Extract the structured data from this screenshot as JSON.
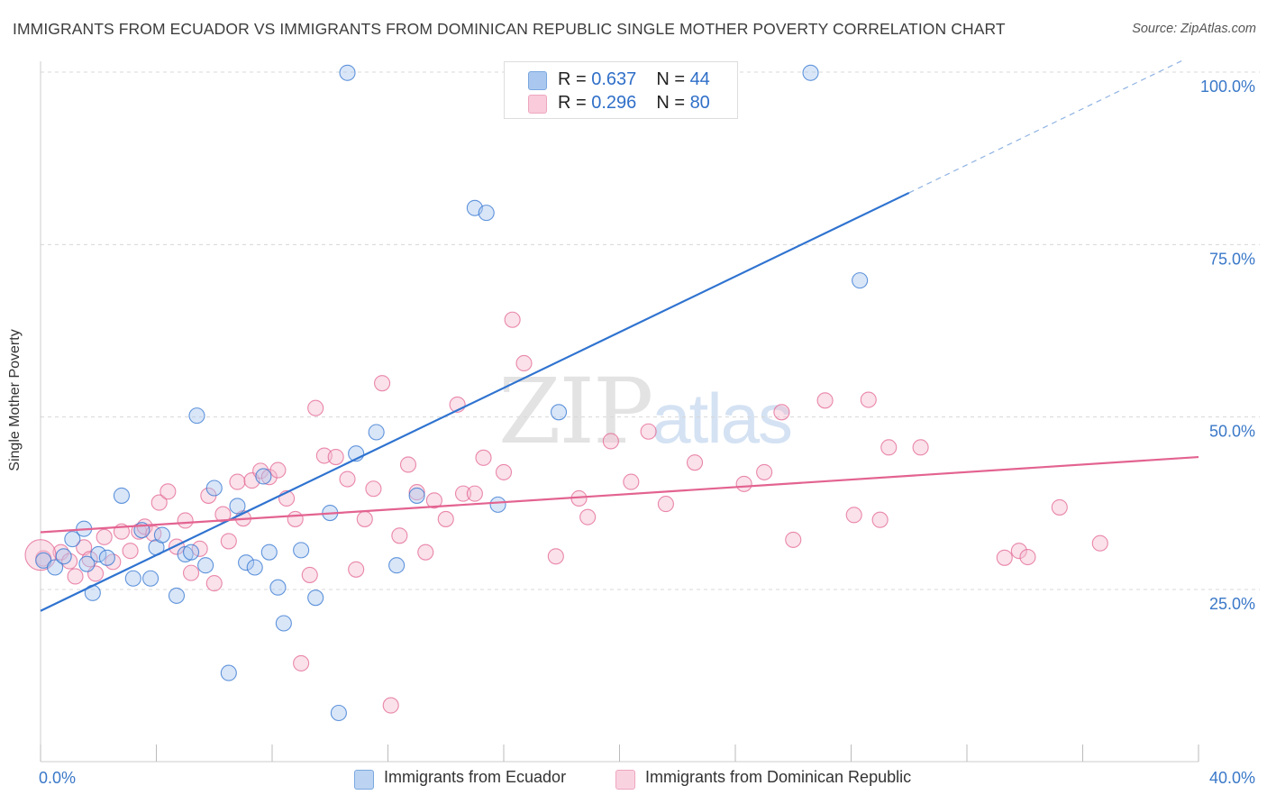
{
  "title": "IMMIGRANTS FROM ECUADOR VS IMMIGRANTS FROM DOMINICAN REPUBLIC SINGLE MOTHER POVERTY CORRELATION CHART",
  "source": "Source: ZipAtlas.com",
  "watermark": {
    "zip": "ZIP",
    "atlas": "atlas"
  },
  "colors": {
    "blue": "#2f73d0",
    "blue_fill": "#aac8ef",
    "pink": "#e36390",
    "pink_fill": "#f5bdd0",
    "grid": "#d8d8d8",
    "tick_label": "#3a78c8"
  },
  "legend_top": [
    {
      "r_label": "R = ",
      "r_value": "0.637",
      "n_label": "N = ",
      "n_value": "44"
    },
    {
      "r_label": "R = ",
      "r_value": "0.296",
      "n_label": "N = ",
      "n_value": "80"
    }
  ],
  "legend_bottom": [
    {
      "label": "Immigrants from Ecuador"
    },
    {
      "label": "Immigrants from Dominican Republic"
    }
  ],
  "chart_data": {
    "type": "scatter",
    "title": "IMMIGRANTS FROM ECUADOR VS IMMIGRANTS FROM DOMINICAN REPUBLIC SINGLE MOTHER POVERTY CORRELATION CHART",
    "xlabel": "",
    "ylabel": "Single Mother Poverty",
    "xlim": [
      0,
      40
    ],
    "ylim": [
      0,
      102
    ],
    "x_tick_labels": [
      "0.0%",
      "40.0%"
    ],
    "y_ticks": [
      25,
      50,
      75,
      100
    ],
    "y_tick_labels": [
      "25.0%",
      "50.0%",
      "75.0%",
      "100.0%"
    ],
    "grid": true,
    "legend_position": "top-center",
    "series": [
      {
        "name": "Immigrants from Ecuador",
        "color": "blue",
        "trend": {
          "x0": 0,
          "y0": 21.9,
          "x1": 30.0,
          "y1": 82.5,
          "dashed_to_x": 39.5,
          "dashed_to_y": 101.8
        },
        "points": [
          [
            0.1,
            29.2
          ],
          [
            0.5,
            28.2
          ],
          [
            0.8,
            29.8
          ],
          [
            1.1,
            32.3
          ],
          [
            1.5,
            33.8
          ],
          [
            1.6,
            28.7
          ],
          [
            1.8,
            24.5
          ],
          [
            2.0,
            30.1
          ],
          [
            2.3,
            29.6
          ],
          [
            2.8,
            38.6
          ],
          [
            3.2,
            26.6
          ],
          [
            3.5,
            33.6
          ],
          [
            3.8,
            26.6
          ],
          [
            4.0,
            31.1
          ],
          [
            4.2,
            32.9
          ],
          [
            4.7,
            24.1
          ],
          [
            5.0,
            30.1
          ],
          [
            5.2,
            30.4
          ],
          [
            5.4,
            50.2
          ],
          [
            5.7,
            28.5
          ],
          [
            6.0,
            39.7
          ],
          [
            6.5,
            12.9
          ],
          [
            6.8,
            37.1
          ],
          [
            7.1,
            28.9
          ],
          [
            7.4,
            28.2
          ],
          [
            7.7,
            41.4
          ],
          [
            7.9,
            30.4
          ],
          [
            8.2,
            25.3
          ],
          [
            8.4,
            20.1
          ],
          [
            9.0,
            30.7
          ],
          [
            9.5,
            23.8
          ],
          [
            10.0,
            36.1
          ],
          [
            10.3,
            7.1
          ],
          [
            10.6,
            99.9
          ],
          [
            10.9,
            44.7
          ],
          [
            11.6,
            47.8
          ],
          [
            12.3,
            28.5
          ],
          [
            13.0,
            38.6
          ],
          [
            15.0,
            80.3
          ],
          [
            15.4,
            79.6
          ],
          [
            15.8,
            37.3
          ],
          [
            17.9,
            50.7
          ],
          [
            26.6,
            99.9
          ],
          [
            28.3,
            69.8
          ]
        ]
      },
      {
        "name": "Immigrants from Dominican Republic",
        "color": "pink",
        "trend": {
          "x0": 0,
          "y0": 33.3,
          "x1": 40.0,
          "y1": 44.2
        },
        "points": [
          [
            0.1,
            29.5
          ],
          [
            0.7,
            30.4
          ],
          [
            1.0,
            29.1
          ],
          [
            1.2,
            26.9
          ],
          [
            1.5,
            31.1
          ],
          [
            1.7,
            29.4
          ],
          [
            1.9,
            27.3
          ],
          [
            2.2,
            32.6
          ],
          [
            2.5,
            29.0
          ],
          [
            2.8,
            33.4
          ],
          [
            3.1,
            30.6
          ],
          [
            3.4,
            33.4
          ],
          [
            3.6,
            34.1
          ],
          [
            3.9,
            33.1
          ],
          [
            4.1,
            37.6
          ],
          [
            4.4,
            39.2
          ],
          [
            4.7,
            31.2
          ],
          [
            5.0,
            35.0
          ],
          [
            5.2,
            27.4
          ],
          [
            5.5,
            30.9
          ],
          [
            5.8,
            38.6
          ],
          [
            6.0,
            25.9
          ],
          [
            6.3,
            35.9
          ],
          [
            6.5,
            32.0
          ],
          [
            6.8,
            40.6
          ],
          [
            7.0,
            35.3
          ],
          [
            7.3,
            40.8
          ],
          [
            7.6,
            42.2
          ],
          [
            7.9,
            41.3
          ],
          [
            8.2,
            42.3
          ],
          [
            8.5,
            38.2
          ],
          [
            8.8,
            35.2
          ],
          [
            9.0,
            14.3
          ],
          [
            9.3,
            27.1
          ],
          [
            9.5,
            51.3
          ],
          [
            9.8,
            44.4
          ],
          [
            10.2,
            44.2
          ],
          [
            10.6,
            41.0
          ],
          [
            10.9,
            27.9
          ],
          [
            11.2,
            35.2
          ],
          [
            11.5,
            39.6
          ],
          [
            11.8,
            54.9
          ],
          [
            12.1,
            8.2
          ],
          [
            12.4,
            32.8
          ],
          [
            12.7,
            43.1
          ],
          [
            13.0,
            39.1
          ],
          [
            13.3,
            30.4
          ],
          [
            13.6,
            37.9
          ],
          [
            14.0,
            35.2
          ],
          [
            14.4,
            51.8
          ],
          [
            14.6,
            38.9
          ],
          [
            15.0,
            38.9
          ],
          [
            15.3,
            44.1
          ],
          [
            16.0,
            42.0
          ],
          [
            16.3,
            64.1
          ],
          [
            16.7,
            57.8
          ],
          [
            17.8,
            29.8
          ],
          [
            18.6,
            38.2
          ],
          [
            18.9,
            35.5
          ],
          [
            19.7,
            46.5
          ],
          [
            20.4,
            40.6
          ],
          [
            21.0,
            47.9
          ],
          [
            21.6,
            37.4
          ],
          [
            22.6,
            43.4
          ],
          [
            24.3,
            40.3
          ],
          [
            25.0,
            42.0
          ],
          [
            25.6,
            50.7
          ],
          [
            26.0,
            32.2
          ],
          [
            27.1,
            52.4
          ],
          [
            28.1,
            35.8
          ],
          [
            28.6,
            52.5
          ],
          [
            29.0,
            35.1
          ],
          [
            29.3,
            45.6
          ],
          [
            30.4,
            45.6
          ],
          [
            33.3,
            29.6
          ],
          [
            33.8,
            30.6
          ],
          [
            34.1,
            29.7
          ],
          [
            35.2,
            36.9
          ],
          [
            36.6,
            31.7
          ],
          [
            0.0,
            30.0
          ]
        ]
      }
    ]
  }
}
